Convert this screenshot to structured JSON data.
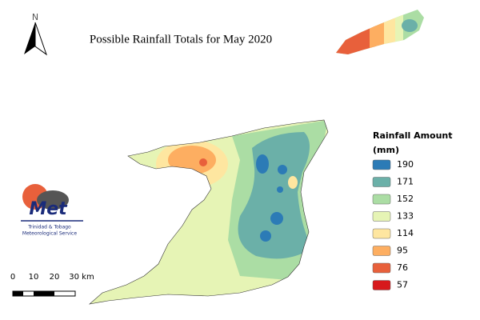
{
  "title": "Possible Rainfall Totals for May 2020",
  "north": "N",
  "legend": {
    "title": [
      "Rainfall Amount",
      "(mm)"
    ],
    "items": [
      {
        "value": 190,
        "color": "#2c7bb6"
      },
      {
        "value": 171,
        "color": "#6bb0a8"
      },
      {
        "value": 152,
        "color": "#abdda4"
      },
      {
        "value": 133,
        "color": "#e6f4b5"
      },
      {
        "value": 114,
        "color": "#fee6a0"
      },
      {
        "value": 95,
        "color": "#fdae61"
      },
      {
        "value": 76,
        "color": "#e8603b"
      },
      {
        "value": 57,
        "color": "#d7191c"
      }
    ]
  },
  "scale_bar": {
    "labels": [
      "0",
      "10",
      "20",
      "30 km"
    ]
  },
  "logo": {
    "text": "Met",
    "subtitle": [
      "Trinidad & Tobago",
      "Meteorological Service"
    ]
  }
}
